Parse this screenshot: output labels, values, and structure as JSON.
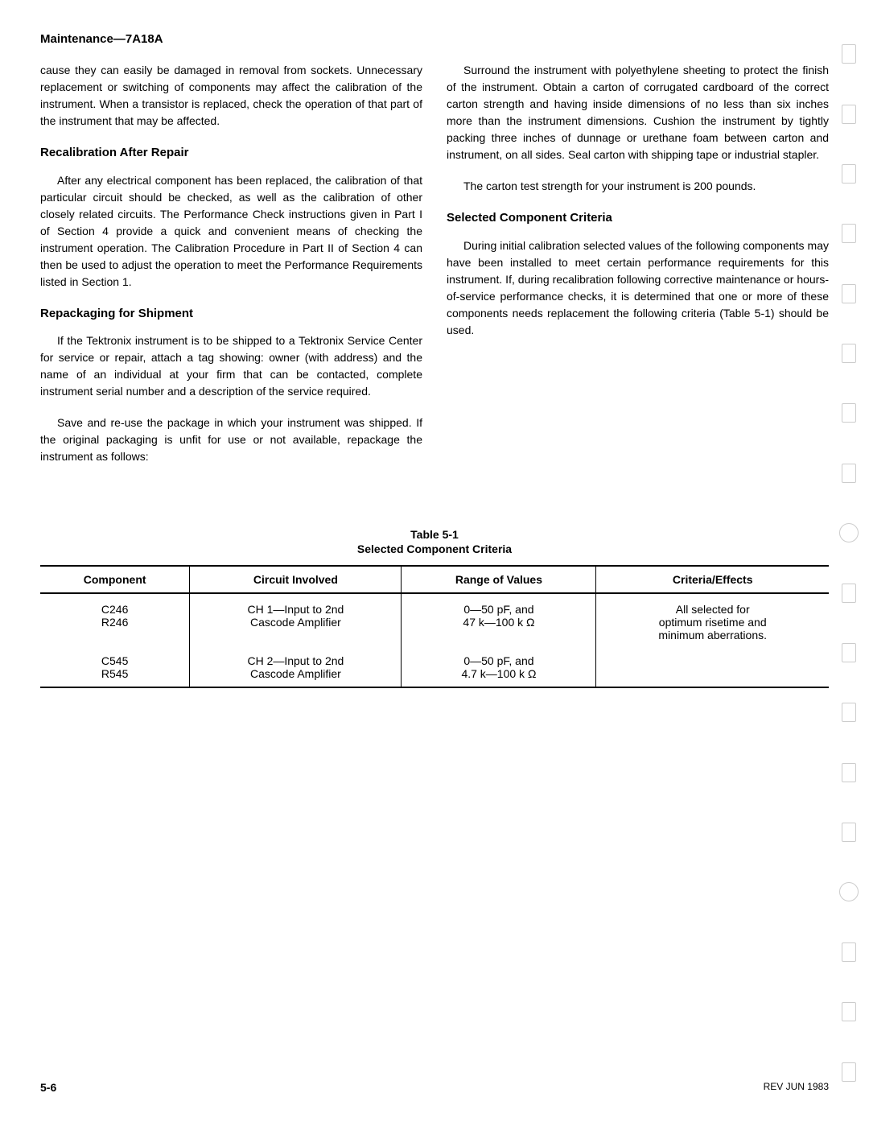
{
  "header": "Maintenance—7A18A",
  "left_column": {
    "para1": "cause they can easily be damaged in removal from sockets. Unnecessary replacement or switching of components may affect the calibration of the instrument. When a transistor is replaced, check the operation of that part of the instrument that may be affected.",
    "section1_title": "Recalibration After Repair",
    "section1_para1": "After any electrical component has been replaced, the calibration of that particular circuit should be checked, as well as the calibration of other closely related circuits. The Performance Check instructions given in Part I of Section 4 provide a quick and convenient means of checking the instrument operation. The Calibration Procedure in Part II of Section 4 can then be used to adjust the operation to meet the Performance Requirements listed in Section 1.",
    "section2_title": "Repackaging for Shipment",
    "section2_para1": "If the Tektronix instrument is to be shipped to a Tektronix Service Center for service or repair, attach a tag showing: owner (with address) and the name of an individual at your firm that can be contacted, complete instrument serial number and a description of the service required.",
    "section2_para2": "Save and re-use the package in which your instrument was shipped. If the original packaging is unfit for use or not available, repackage the instrument as follows:"
  },
  "right_column": {
    "para1": "Surround the instrument with polyethylene sheeting to protect the finish of the instrument. Obtain a carton of corrugated cardboard of the correct carton strength and having inside dimensions of no less than six inches more than the instrument dimensions. Cushion the instrument by tightly packing three inches of dunnage or urethane foam between carton and instrument, on all sides. Seal carton with shipping tape or industrial stapler.",
    "para2": "The carton test strength for your instrument is 200 pounds.",
    "section1_title": "Selected Component Criteria",
    "section1_para1": "During initial calibration selected values of the following components may have been installed to meet certain performance requirements for this instrument. If, during recalibration following corrective maintenance or hours-of-service performance checks, it is determined that one or more of these components needs replacement the following criteria (Table 5-1) should be used."
  },
  "table": {
    "title": "Table 5-1",
    "subtitle": "Selected Component Criteria",
    "headers": [
      "Component",
      "Circuit Involved",
      "Range of Values",
      "Criteria/Effects"
    ],
    "rows": [
      {
        "component1": "C246",
        "component2": "R246",
        "circuit1": "CH 1—Input to 2nd",
        "circuit2": "Cascode Amplifier",
        "range1": "0—50 pF, and",
        "range2": "47 k—100 k Ω",
        "criteria1": "All selected for",
        "criteria2": "optimum risetime and",
        "criteria3": "minimum aberrations."
      },
      {
        "component1": "C545",
        "component2": "R545",
        "circuit1": "CH 2—Input to 2nd",
        "circuit2": "Cascode Amplifier",
        "range1": "0—50 pF, and",
        "range2": "4.7 k—100 k Ω",
        "criteria1": "",
        "criteria2": "",
        "criteria3": ""
      }
    ]
  },
  "footer": {
    "page": "5-6",
    "rev": "REV JUN 1983"
  }
}
